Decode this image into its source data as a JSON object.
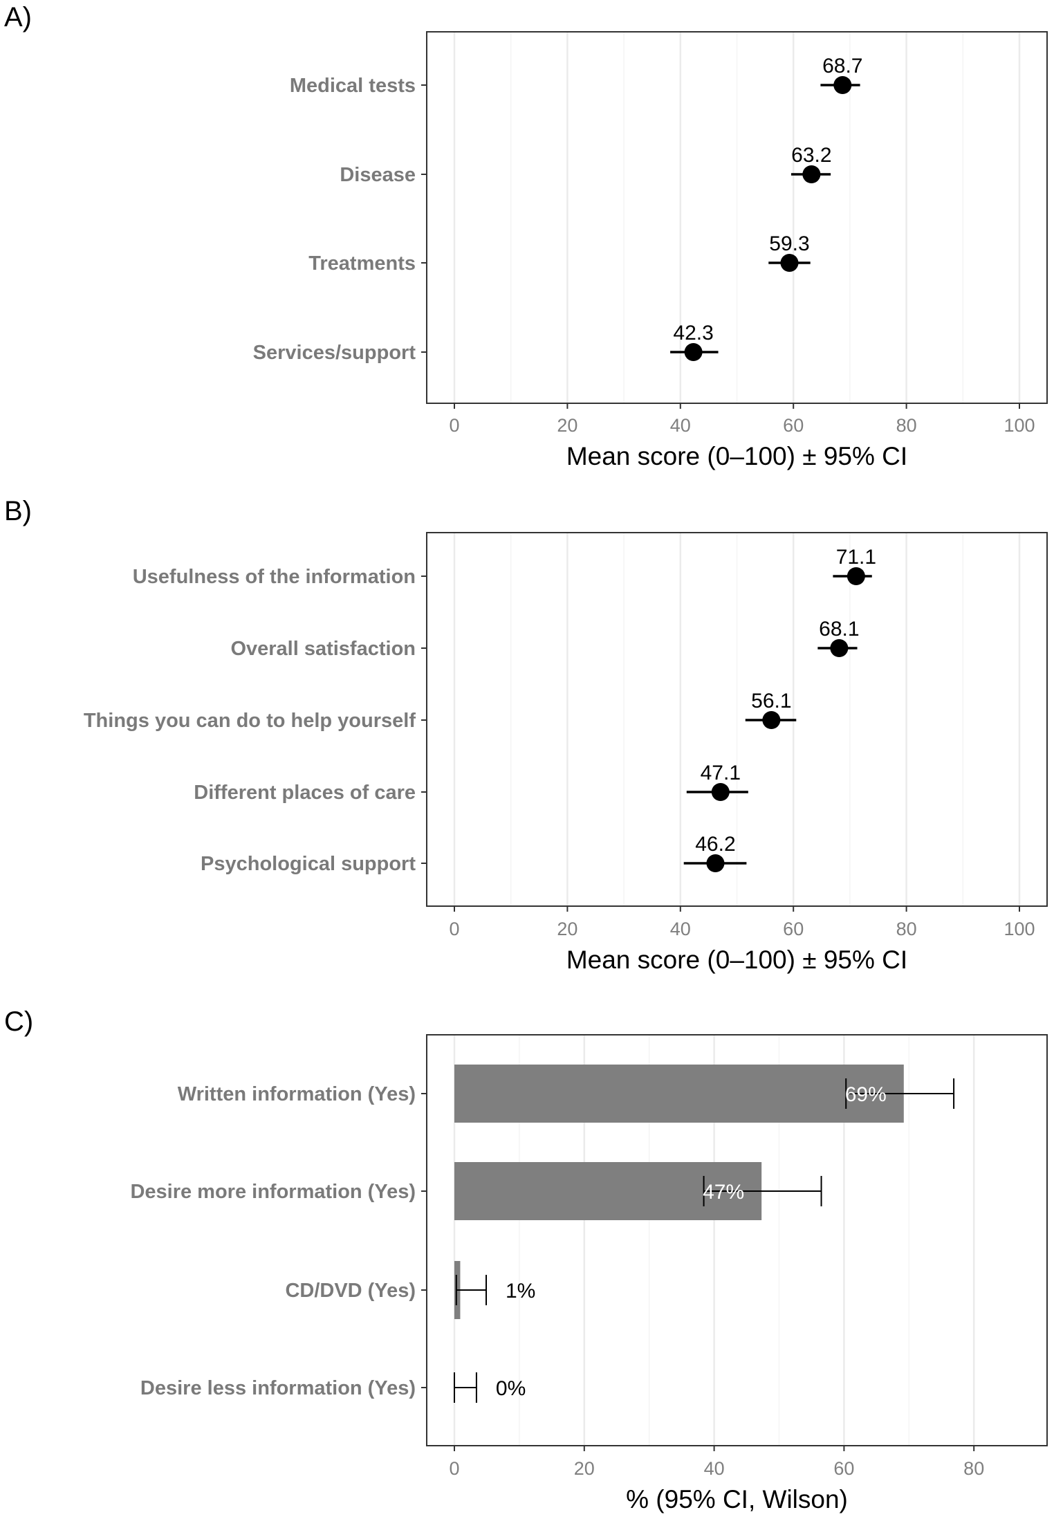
{
  "chart_data": [
    {
      "panel_label": "A)",
      "type": "scatter",
      "xlabel": "Mean score (0–100) ± 95% CI",
      "xlim": [
        0,
        100
      ],
      "xticks": [
        0,
        20,
        40,
        60,
        80,
        100
      ],
      "grid": true,
      "categories": [
        "Medical tests",
        "Disease",
        "Treatments",
        "Services/support"
      ],
      "values": [
        68.7,
        63.2,
        59.3,
        42.3
      ],
      "ci_low": [
        64.8,
        59.6,
        55.6,
        38.2
      ],
      "ci_high": [
        71.8,
        66.6,
        63.0,
        46.7
      ],
      "labels": [
        "68.7",
        "63.2",
        "59.3",
        "42.3"
      ]
    },
    {
      "panel_label": "B)",
      "type": "scatter",
      "xlabel": "Mean score (0–100) ± 95% CI",
      "xlim": [
        0,
        100
      ],
      "xticks": [
        0,
        20,
        40,
        60,
        80,
        100
      ],
      "grid": true,
      "categories": [
        "Usefulness of the information",
        "Overall satisfaction",
        "Things you can do to help yourself",
        "Different places of care",
        "Psychological support"
      ],
      "values": [
        71.1,
        68.1,
        56.1,
        47.1,
        46.2
      ],
      "ci_low": [
        67.0,
        64.3,
        51.5,
        41.1,
        40.6
      ],
      "ci_high": [
        73.9,
        71.3,
        60.5,
        52.0,
        51.7
      ],
      "labels": [
        "71.1",
        "68.1",
        "56.1",
        "47.1",
        "46.2"
      ]
    },
    {
      "panel_label": "C)",
      "type": "bar",
      "xlabel": "% (95% CI, Wilson)",
      "xlim": [
        0,
        80
      ],
      "xticks": [
        0,
        20,
        40,
        60,
        80
      ],
      "grid": true,
      "bar_color": "#7f7f7f",
      "categories": [
        "Written information (Yes)",
        "Desire more information (Yes)",
        "CD/DVD (Yes)",
        "Desire less information (Yes)"
      ],
      "values": [
        69.2,
        47.3,
        0.9,
        0
      ],
      "ci_low": [
        60.3,
        38.4,
        0.3,
        0
      ],
      "ci_high": [
        76.9,
        56.5,
        4.9,
        3.4
      ],
      "labels": [
        "69%",
        "47%",
        "1%",
        "0%"
      ]
    }
  ]
}
